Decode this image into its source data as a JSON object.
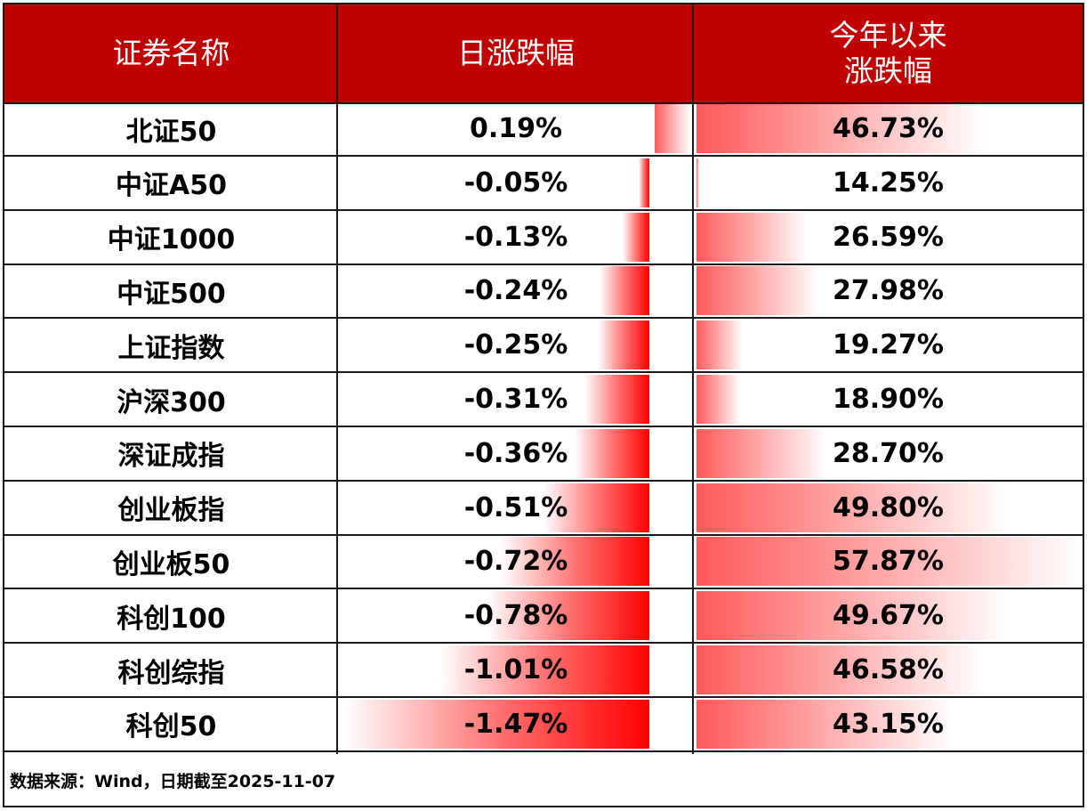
{
  "header": {
    "col_name": "证券名称",
    "col_daily": "日涨跌幅",
    "col_ytd_line1": "今年以来",
    "col_ytd_line2": "涨跌幅"
  },
  "colors": {
    "header_bg": "#C00000",
    "header_text": "#FFFFFF",
    "bar_red": "#FF0000",
    "ytd_bar": "#FF5A5A"
  },
  "rows": [
    {
      "name": "北证50",
      "daily": "0.19%",
      "ytd": "46.73%"
    },
    {
      "name": "中证A50",
      "daily": "-0.05%",
      "ytd": "14.25%"
    },
    {
      "name": "中证1000",
      "daily": "-0.13%",
      "ytd": "26.59%"
    },
    {
      "name": "中证500",
      "daily": "-0.24%",
      "ytd": "27.98%"
    },
    {
      "name": "上证指数",
      "daily": "-0.25%",
      "ytd": "19.27%"
    },
    {
      "name": "沪深300",
      "daily": "-0.31%",
      "ytd": "18.90%"
    },
    {
      "name": "深证成指",
      "daily": "-0.36%",
      "ytd": "28.70%"
    },
    {
      "name": "创业板指",
      "daily": "-0.51%",
      "ytd": "49.80%"
    },
    {
      "name": "创业板50",
      "daily": "-0.72%",
      "ytd": "57.87%"
    },
    {
      "name": "科创100",
      "daily": "-0.78%",
      "ytd": "49.67%"
    },
    {
      "name": "科创综指",
      "daily": "-1.01%",
      "ytd": "46.58%"
    },
    {
      "name": "科创50",
      "daily": "-1.47%",
      "ytd": "43.15%"
    }
  ],
  "footer": {
    "note": "数据来源：Wind，日期截至2025-11-07"
  },
  "chart_data": {
    "type": "table",
    "title": "",
    "columns": [
      "证券名称",
      "日涨跌幅",
      "今年以来涨跌幅"
    ],
    "categories": [
      "北证50",
      "中证A50",
      "中证1000",
      "中证500",
      "上证指数",
      "沪深300",
      "深证成指",
      "创业板指",
      "创业板50",
      "科创100",
      "科创综指",
      "科创50"
    ],
    "series": [
      {
        "name": "日涨跌幅 (%)",
        "values": [
          0.19,
          -0.05,
          -0.13,
          -0.24,
          -0.25,
          -0.31,
          -0.36,
          -0.51,
          -0.72,
          -0.78,
          -1.01,
          -1.47
        ]
      },
      {
        "name": "今年以来涨跌幅 (%)",
        "values": [
          46.73,
          14.25,
          26.59,
          27.98,
          19.27,
          18.9,
          28.7,
          49.8,
          57.87,
          49.67,
          46.58,
          43.15
        ]
      }
    ],
    "annotations": [
      "数据来源：Wind，日期截至2025-11-07"
    ],
    "layout": {
      "data_bars": true,
      "grid": true,
      "legend": "none"
    }
  }
}
